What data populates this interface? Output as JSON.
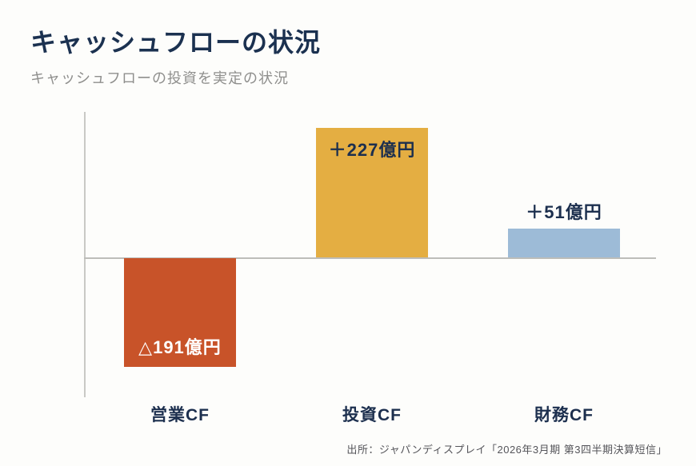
{
  "chart_data": {
    "type": "bar",
    "title": "キャッシュフローの状況",
    "subtitle": "キャッシュフローの投資を実定の状況",
    "categories": [
      "営業CF",
      "投資CF",
      "財務CF"
    ],
    "values": [
      -191,
      227,
      51
    ],
    "value_labels": [
      "△191億円",
      "＋227億円",
      "＋51億円"
    ],
    "unit": "億円",
    "colors": [
      "#c85329",
      "#e4ae42",
      "#9dbbd7"
    ],
    "ylim": [
      -250,
      260
    ],
    "grid": false,
    "legend": false,
    "source": "出所：ジャパンディスプレイ「2026年3月期 第3四半期決算短信」",
    "title_color": "#1b3150",
    "label_dark_color": "#1c2f4e",
    "label_light_color": "#ffffff"
  }
}
